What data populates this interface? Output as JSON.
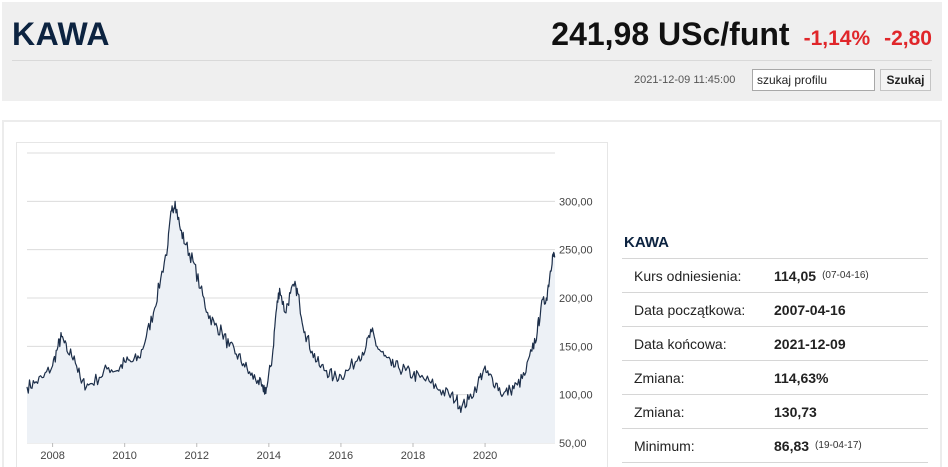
{
  "header": {
    "title": "KAWA",
    "price": "241,98 USc/funt",
    "change_pct": "-1,14%",
    "change_abs": "-2,80",
    "timestamp": "2021-12-09 11:45:00",
    "search_value": "szukaj profilu",
    "search_button": "Szukaj"
  },
  "info": {
    "title": "KAWA",
    "rows": [
      {
        "label": "Kurs odniesienia:",
        "value": "114,05",
        "note": "(07-04-16)"
      },
      {
        "label": "Data początkowa:",
        "value": "2007-04-16",
        "note": ""
      },
      {
        "label": "Data końcowa:",
        "value": "2021-12-09",
        "note": ""
      },
      {
        "label": "Zmiana:",
        "value": "114,63%",
        "note": ""
      },
      {
        "label": "Zmiana:",
        "value": "130,73",
        "note": ""
      },
      {
        "label": "Minimum:",
        "value": "86,83",
        "note": "(19-04-17)"
      }
    ]
  },
  "colors": {
    "line": "#1d2f4a",
    "area": "#edf1f6",
    "negative": "#e0262a",
    "title": "#0c2340"
  },
  "chart_data": {
    "type": "area",
    "x_labels": [
      "2008",
      "2010",
      "2012",
      "2014",
      "2016",
      "2018",
      "2020"
    ],
    "y_ticks": [
      "50,00",
      "100,00",
      "150,00",
      "200,00",
      "250,00",
      "300,00"
    ],
    "y_tick_values": [
      50,
      100,
      150,
      200,
      250,
      300
    ],
    "ylim": [
      50,
      350
    ],
    "xlim": [
      2007.29,
      2021.94
    ],
    "grid": true,
    "points": [
      [
        2007.29,
        108
      ],
      [
        2007.5,
        112
      ],
      [
        2007.75,
        118
      ],
      [
        2008.0,
        130
      ],
      [
        2008.15,
        150
      ],
      [
        2008.25,
        160
      ],
      [
        2008.4,
        145
      ],
      [
        2008.6,
        140
      ],
      [
        2008.8,
        112
      ],
      [
        2009.0,
        110
      ],
      [
        2009.3,
        118
      ],
      [
        2009.55,
        128
      ],
      [
        2009.8,
        125
      ],
      [
        2010.0,
        134
      ],
      [
        2010.2,
        134
      ],
      [
        2010.4,
        138
      ],
      [
        2010.6,
        160
      ],
      [
        2010.8,
        185
      ],
      [
        2011.0,
        220
      ],
      [
        2011.2,
        255
      ],
      [
        2011.3,
        290
      ],
      [
        2011.4,
        300
      ],
      [
        2011.55,
        270
      ],
      [
        2011.7,
        255
      ],
      [
        2011.9,
        238
      ],
      [
        2012.1,
        210
      ],
      [
        2012.3,
        185
      ],
      [
        2012.5,
        172
      ],
      [
        2012.7,
        165
      ],
      [
        2012.9,
        150
      ],
      [
        2013.1,
        142
      ],
      [
        2013.3,
        132
      ],
      [
        2013.5,
        120
      ],
      [
        2013.7,
        115
      ],
      [
        2013.85,
        103
      ],
      [
        2013.95,
        108
      ],
      [
        2014.1,
        140
      ],
      [
        2014.2,
        185
      ],
      [
        2014.3,
        210
      ],
      [
        2014.45,
        185
      ],
      [
        2014.6,
        205
      ],
      [
        2014.75,
        212
      ],
      [
        2014.85,
        195
      ],
      [
        2015.0,
        165
      ],
      [
        2015.2,
        145
      ],
      [
        2015.4,
        130
      ],
      [
        2015.6,
        125
      ],
      [
        2015.8,
        118
      ],
      [
        2016.0,
        120
      ],
      [
        2016.2,
        125
      ],
      [
        2016.5,
        140
      ],
      [
        2016.7,
        150
      ],
      [
        2016.85,
        165
      ],
      [
        2017.0,
        150
      ],
      [
        2017.2,
        140
      ],
      [
        2017.4,
        130
      ],
      [
        2017.6,
        128
      ],
      [
        2017.8,
        125
      ],
      [
        2018.0,
        120
      ],
      [
        2018.2,
        118
      ],
      [
        2018.5,
        112
      ],
      [
        2018.75,
        105
      ],
      [
        2019.0,
        100
      ],
      [
        2019.2,
        95
      ],
      [
        2019.35,
        87
      ],
      [
        2019.55,
        95
      ],
      [
        2019.8,
        112
      ],
      [
        2019.95,
        125
      ],
      [
        2020.1,
        120
      ],
      [
        2020.3,
        112
      ],
      [
        2020.5,
        100
      ],
      [
        2020.7,
        105
      ],
      [
        2020.9,
        110
      ],
      [
        2021.1,
        120
      ],
      [
        2021.3,
        145
      ],
      [
        2021.45,
        165
      ],
      [
        2021.55,
        190
      ],
      [
        2021.7,
        200
      ],
      [
        2021.8,
        225
      ],
      [
        2021.87,
        244
      ],
      [
        2021.94,
        242
      ]
    ]
  }
}
